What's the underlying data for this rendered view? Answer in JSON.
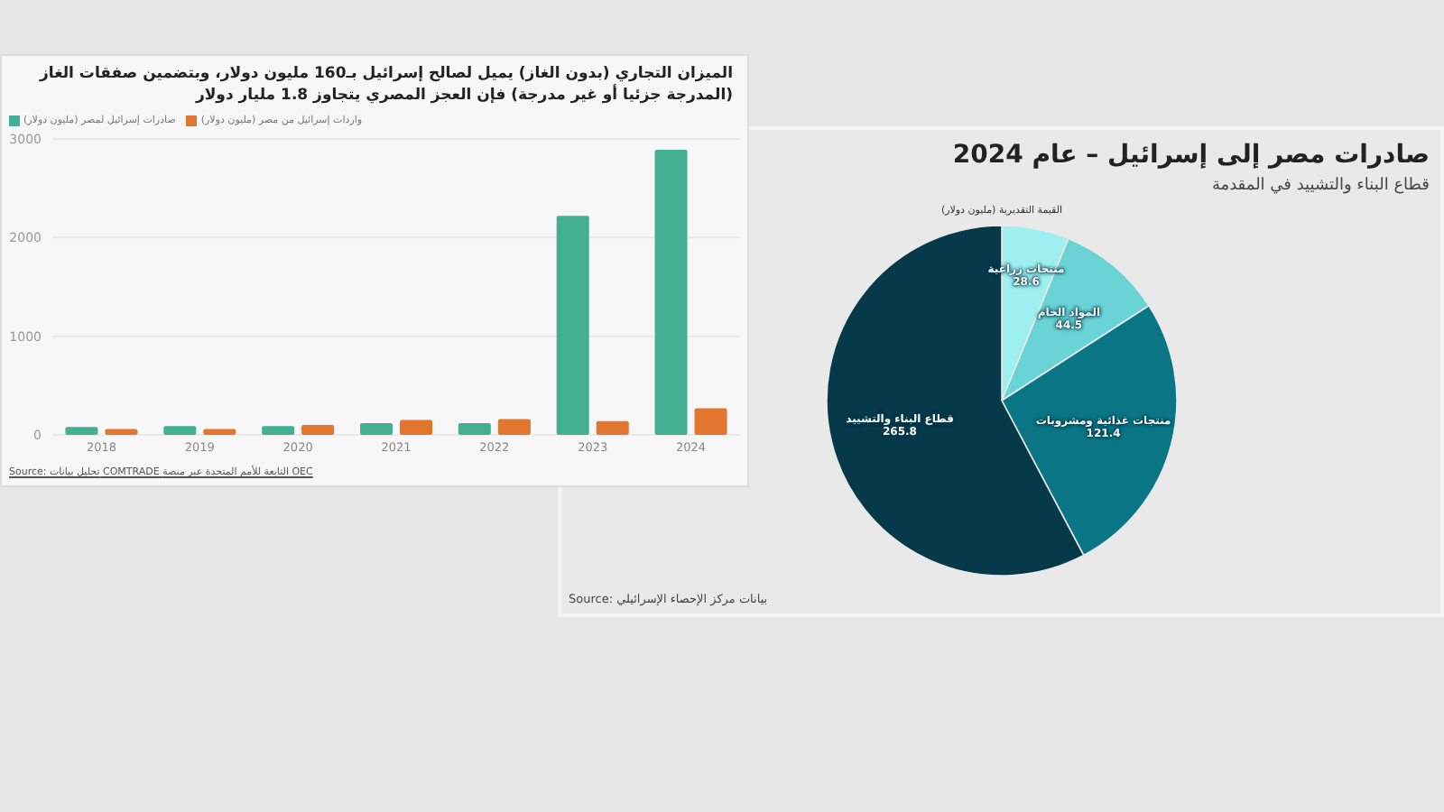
{
  "chart_data": [
    {
      "type": "bar",
      "title": "الميزان التجاري (بدون الغاز) يميل لصالح إسرائيل بـ160 مليون دولار، وبتضمين صفقات الغاز (المدرجة جزئيا أو غير مدرجة) فإن العجز المصري يتجاوز 1.8 مليار دولار",
      "categories": [
        "2018",
        "2019",
        "2020",
        "2021",
        "2022",
        "2023",
        "2024"
      ],
      "series": [
        {
          "name": "صادرات إسرائيل لمصر (مليون دولار)",
          "color": "#43b08f",
          "values": [
            80,
            90,
            90,
            120,
            120,
            2220,
            2890
          ]
        },
        {
          "name": "واردات إسرائيل من مصر (مليون دولار)",
          "color": "#e2762f",
          "values": [
            60,
            60,
            100,
            150,
            160,
            140,
            270
          ]
        }
      ],
      "ylim": [
        0,
        3000
      ],
      "yticks": [
        0,
        1000,
        2000,
        3000
      ],
      "grid": "y",
      "legend": "top",
      "annotations": [
        "Source: تحليل بيانات COMTRADE التابعة للأمم المتحدة عبر منصة OEC"
      ]
    },
    {
      "type": "pie",
      "title": "صادرات مصر إلى إسرائيل – عام 2024",
      "subtitle": "قطاع البناء والتشييد في المقدمة",
      "categories": [
        "منتجات زراعية",
        "المواد الخام",
        "منتجات غذائية ومشروبات",
        "قطاع البناء والتشييد"
      ],
      "values": [
        28.6,
        44.5,
        121.4,
        265.8
      ],
      "colors": [
        "#9ef0f0",
        "#6ad3d6",
        "#0a7585",
        "#06394a"
      ],
      "data_labels": true,
      "annotations": [
        "القيمة التقديرية (مليون دولار)",
        "Source: بيانات مركز الإحصاء الإسرائيلي"
      ]
    }
  ]
}
